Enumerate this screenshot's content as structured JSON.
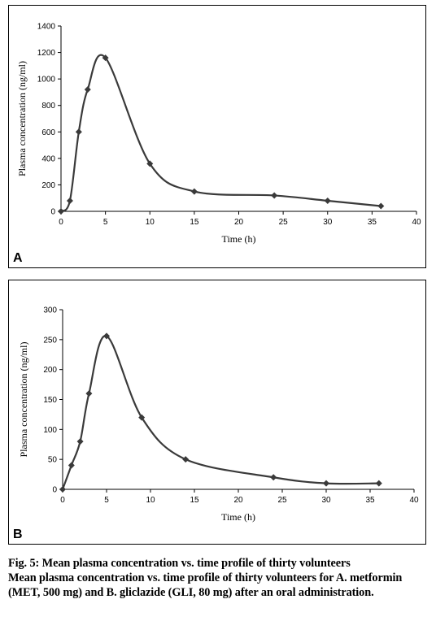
{
  "chart_data": [
    {
      "panel": "A",
      "type": "line",
      "xlabel": "Time (h)",
      "ylabel": "Plasma concentration (ng/ml)",
      "xlim": [
        0,
        40
      ],
      "ylim": [
        0,
        1400
      ],
      "xticks": [
        0,
        5,
        10,
        15,
        20,
        25,
        30,
        35,
        40
      ],
      "yticks": [
        0,
        200,
        400,
        600,
        800,
        1000,
        1200,
        1400
      ],
      "smooth": true,
      "marker": "diamond",
      "line_color": "#3a3a3a",
      "series": [
        {
          "x": [
            0,
            1,
            2,
            3,
            5,
            10,
            15,
            24,
            30,
            36
          ],
          "y": [
            0,
            80,
            600,
            920,
            1160,
            360,
            150,
            120,
            80,
            40
          ]
        }
      ]
    },
    {
      "panel": "B",
      "type": "line",
      "xlabel": "Time (h)",
      "ylabel": "Plasma concentration (ng/ml)",
      "xlim": [
        0,
        40
      ],
      "ylim": [
        0,
        300
      ],
      "xticks": [
        0,
        5,
        10,
        15,
        20,
        25,
        30,
        35,
        40
      ],
      "yticks": [
        0,
        50,
        100,
        150,
        200,
        250,
        300
      ],
      "smooth": true,
      "marker": "diamond",
      "line_color": "#3a3a3a",
      "series": [
        {
          "x": [
            0,
            1,
            2,
            3,
            5,
            9,
            14,
            24,
            30,
            36
          ],
          "y": [
            0,
            40,
            80,
            160,
            256,
            120,
            50,
            20,
            10,
            10
          ]
        }
      ]
    }
  ],
  "caption": {
    "line1": "Fig. 5: Mean plasma concentration vs. time profile of thirty volunteers",
    "line2": "Mean plasma concentration vs. time profile of thirty volunteers for A. metformin (MET, 500 mg) and B. gliclazide (GLI, 80 mg) after an oral administration."
  }
}
